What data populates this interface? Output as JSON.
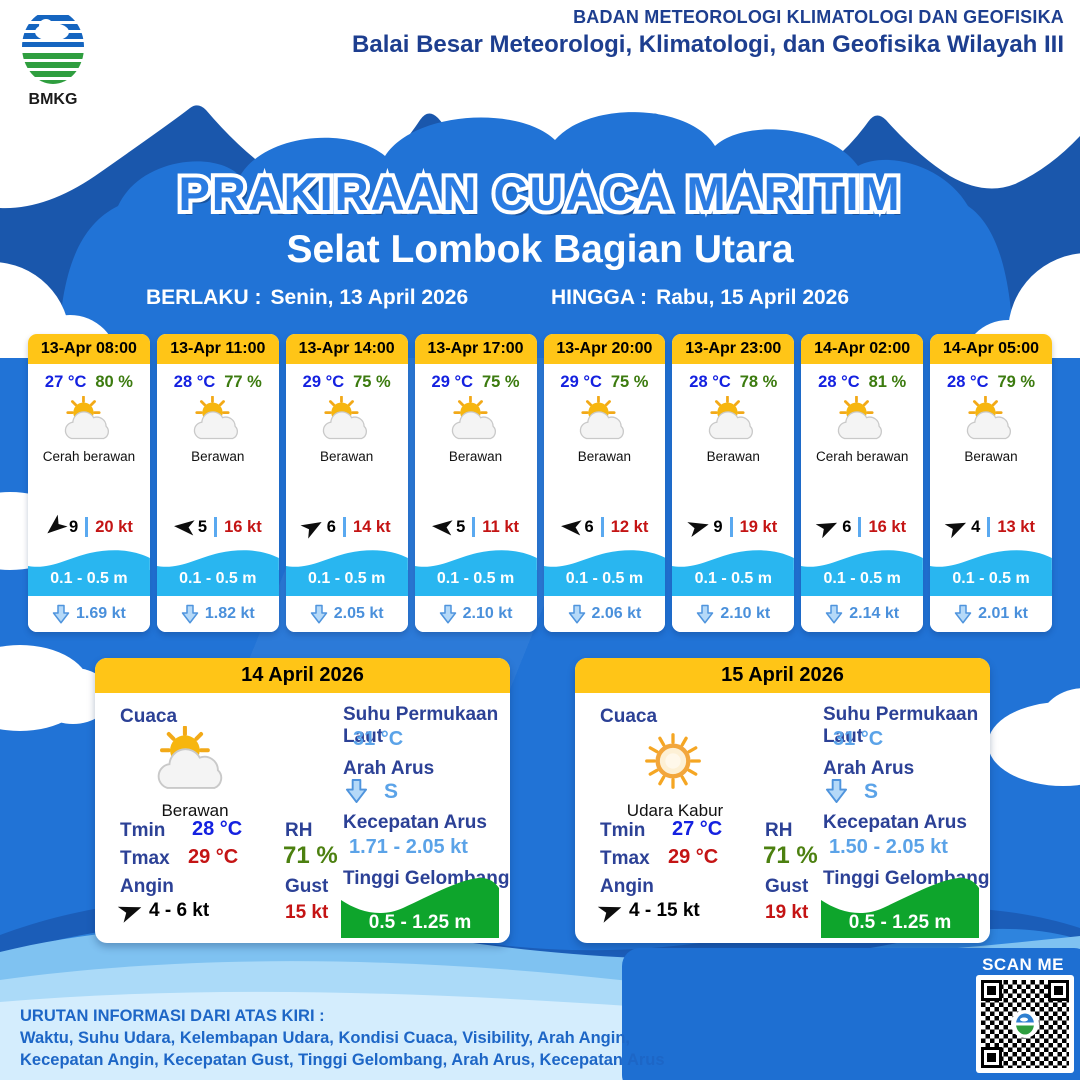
{
  "header": {
    "logo_text": "BMKG",
    "agency_line1": "BADAN METEOROLOGI KLIMATOLOGI DAN GEOFISIKA",
    "agency_line2": "Balai Besar Meteorologi, Klimatologi, dan Geofisika Wilayah III"
  },
  "title": "PRAKIRAAN CUACA MARITIM",
  "subtitle": "Selat Lombok Bagian Utara",
  "validity": {
    "berlaku_label": "BERLAKU :",
    "berlaku_value": "Senin, 13 April 2026",
    "hingga_label": "HINGGA :",
    "hingga_value": "Rabu, 15 April 2026"
  },
  "forecast_cards": [
    {
      "time": "13-Apr 08:00",
      "temp": "27 °C",
      "rh": "80 %",
      "icon": "sun-cloud",
      "desc": "Cerah berawan",
      "wind_dir_deg": 140,
      "visibility": "9",
      "wind_speed": "20 kt",
      "wave_height": "0.1 - 0.5 m",
      "current_speed": "1.69 kt"
    },
    {
      "time": "13-Apr 11:00",
      "temp": "28 °C",
      "rh": "77 %",
      "icon": "sun-cloud",
      "desc": "Berawan",
      "wind_dir_deg": 185,
      "visibility": "5",
      "wind_speed": "16 kt",
      "wave_height": "0.1 - 0.5 m",
      "current_speed": "1.82 kt"
    },
    {
      "time": "13-Apr 14:00",
      "temp": "29 °C",
      "rh": "75 %",
      "icon": "sun-cloud",
      "desc": "Berawan",
      "wind_dir_deg": -30,
      "visibility": "6",
      "wind_speed": "14 kt",
      "wave_height": "0.1 - 0.5 m",
      "current_speed": "2.05 kt"
    },
    {
      "time": "13-Apr 17:00",
      "temp": "29 °C",
      "rh": "75 %",
      "icon": "sun-cloud",
      "desc": "Berawan",
      "wind_dir_deg": 185,
      "visibility": "5",
      "wind_speed": "11 kt",
      "wave_height": "0.1 - 0.5 m",
      "current_speed": "2.10 kt"
    },
    {
      "time": "13-Apr 20:00",
      "temp": "29 °C",
      "rh": "75 %",
      "icon": "sun-cloud",
      "desc": "Berawan",
      "wind_dir_deg": 185,
      "visibility": "6",
      "wind_speed": "12 kt",
      "wave_height": "0.1 - 0.5 m",
      "current_speed": "2.06 kt"
    },
    {
      "time": "13-Apr 23:00",
      "temp": "28 °C",
      "rh": "78 %",
      "icon": "sun-cloud",
      "desc": "Berawan",
      "wind_dir_deg": -15,
      "visibility": "9",
      "wind_speed": "19 kt",
      "wave_height": "0.1 - 0.5 m",
      "current_speed": "2.10 kt"
    },
    {
      "time": "14-Apr 02:00",
      "temp": "28 °C",
      "rh": "81 %",
      "icon": "sun-cloud",
      "desc": "Cerah berawan",
      "wind_dir_deg": -25,
      "visibility": "6",
      "wind_speed": "16 kt",
      "wave_height": "0.1 - 0.5 m",
      "current_speed": "2.14 kt"
    },
    {
      "time": "14-Apr 05:00",
      "temp": "28 °C",
      "rh": "79 %",
      "icon": "sun-cloud",
      "desc": "Berawan",
      "wind_dir_deg": -25,
      "visibility": "4",
      "wind_speed": "13 kt",
      "wave_height": "0.1 - 0.5 m",
      "current_speed": "2.01 kt"
    }
  ],
  "daily_cards": [
    {
      "date": "14 April 2026",
      "cuaca_label": "Cuaca",
      "icon": "sun-cloud",
      "desc": "Berawan",
      "tmin_label": "Tmin",
      "tmin": "28 °C",
      "tmax_label": "Tmax",
      "tmax": "29 °C",
      "rh_label": "RH",
      "rh": "71 %",
      "angin_label": "Angin",
      "wind_dir_deg": -20,
      "wind": "4 - 6 kt",
      "gust_label": "Gust",
      "gust": "15 kt",
      "sst_label": "Suhu Permukaan Laut",
      "sst": "31 °C",
      "arah_arus_label": "Arah Arus",
      "arah_arus": "S",
      "kecepatan_arus_label": "Kecepatan Arus",
      "kecepatan_arus": "1.71 - 2.05 kt",
      "gelombang_label": "Tinggi Gelombang",
      "gelombang": "0.5 - 1.25 m"
    },
    {
      "date": "15 April 2026",
      "cuaca_label": "Cuaca",
      "icon": "haze-sun",
      "desc": "Udara Kabur",
      "tmin_label": "Tmin",
      "tmin": "27 °C",
      "tmax_label": "Tmax",
      "tmax": "29 °C",
      "rh_label": "RH",
      "rh": "71 %",
      "angin_label": "Angin",
      "wind_dir_deg": -20,
      "wind": "4 - 15 kt",
      "gust_label": "Gust",
      "gust": "19 kt",
      "sst_label": "Suhu Permukaan Laut",
      "sst": "31 °C",
      "arah_arus_label": "Arah Arus",
      "arah_arus": "S",
      "kecepatan_arus_label": "Kecepatan Arus",
      "kecepatan_arus": "1.50 - 2.05 kt",
      "gelombang_label": "Tinggi Gelombang",
      "gelombang": "0.5 - 1.25 m"
    }
  ],
  "footer": {
    "info_title": "URUTAN INFORMASI DARI ATAS KIRI :",
    "info_line1": "Waktu, Suhu Udara, Kelembapan Udara, Kondisi Cuaca, Visibility, Arah Angin,",
    "info_line2": "Kecepatan Angin, Kecepatan Gust, Tinggi Gelombang, Arah Arus, Kecepatan Arus",
    "scan_label": "SCAN ME"
  },
  "colors": {
    "main_blue": "#2173d6",
    "navy_wave": "#1a57ac",
    "header_yellow": "#ffc517",
    "temp_blue": "#1421e0",
    "humidity_green": "#3c7b0f",
    "wind_red": "#c41414",
    "current_blue": "#4a90db",
    "wave_cyan": "#29b6f0",
    "gelombang_green": "#0ea52c",
    "label_navy": "#2c4196"
  }
}
